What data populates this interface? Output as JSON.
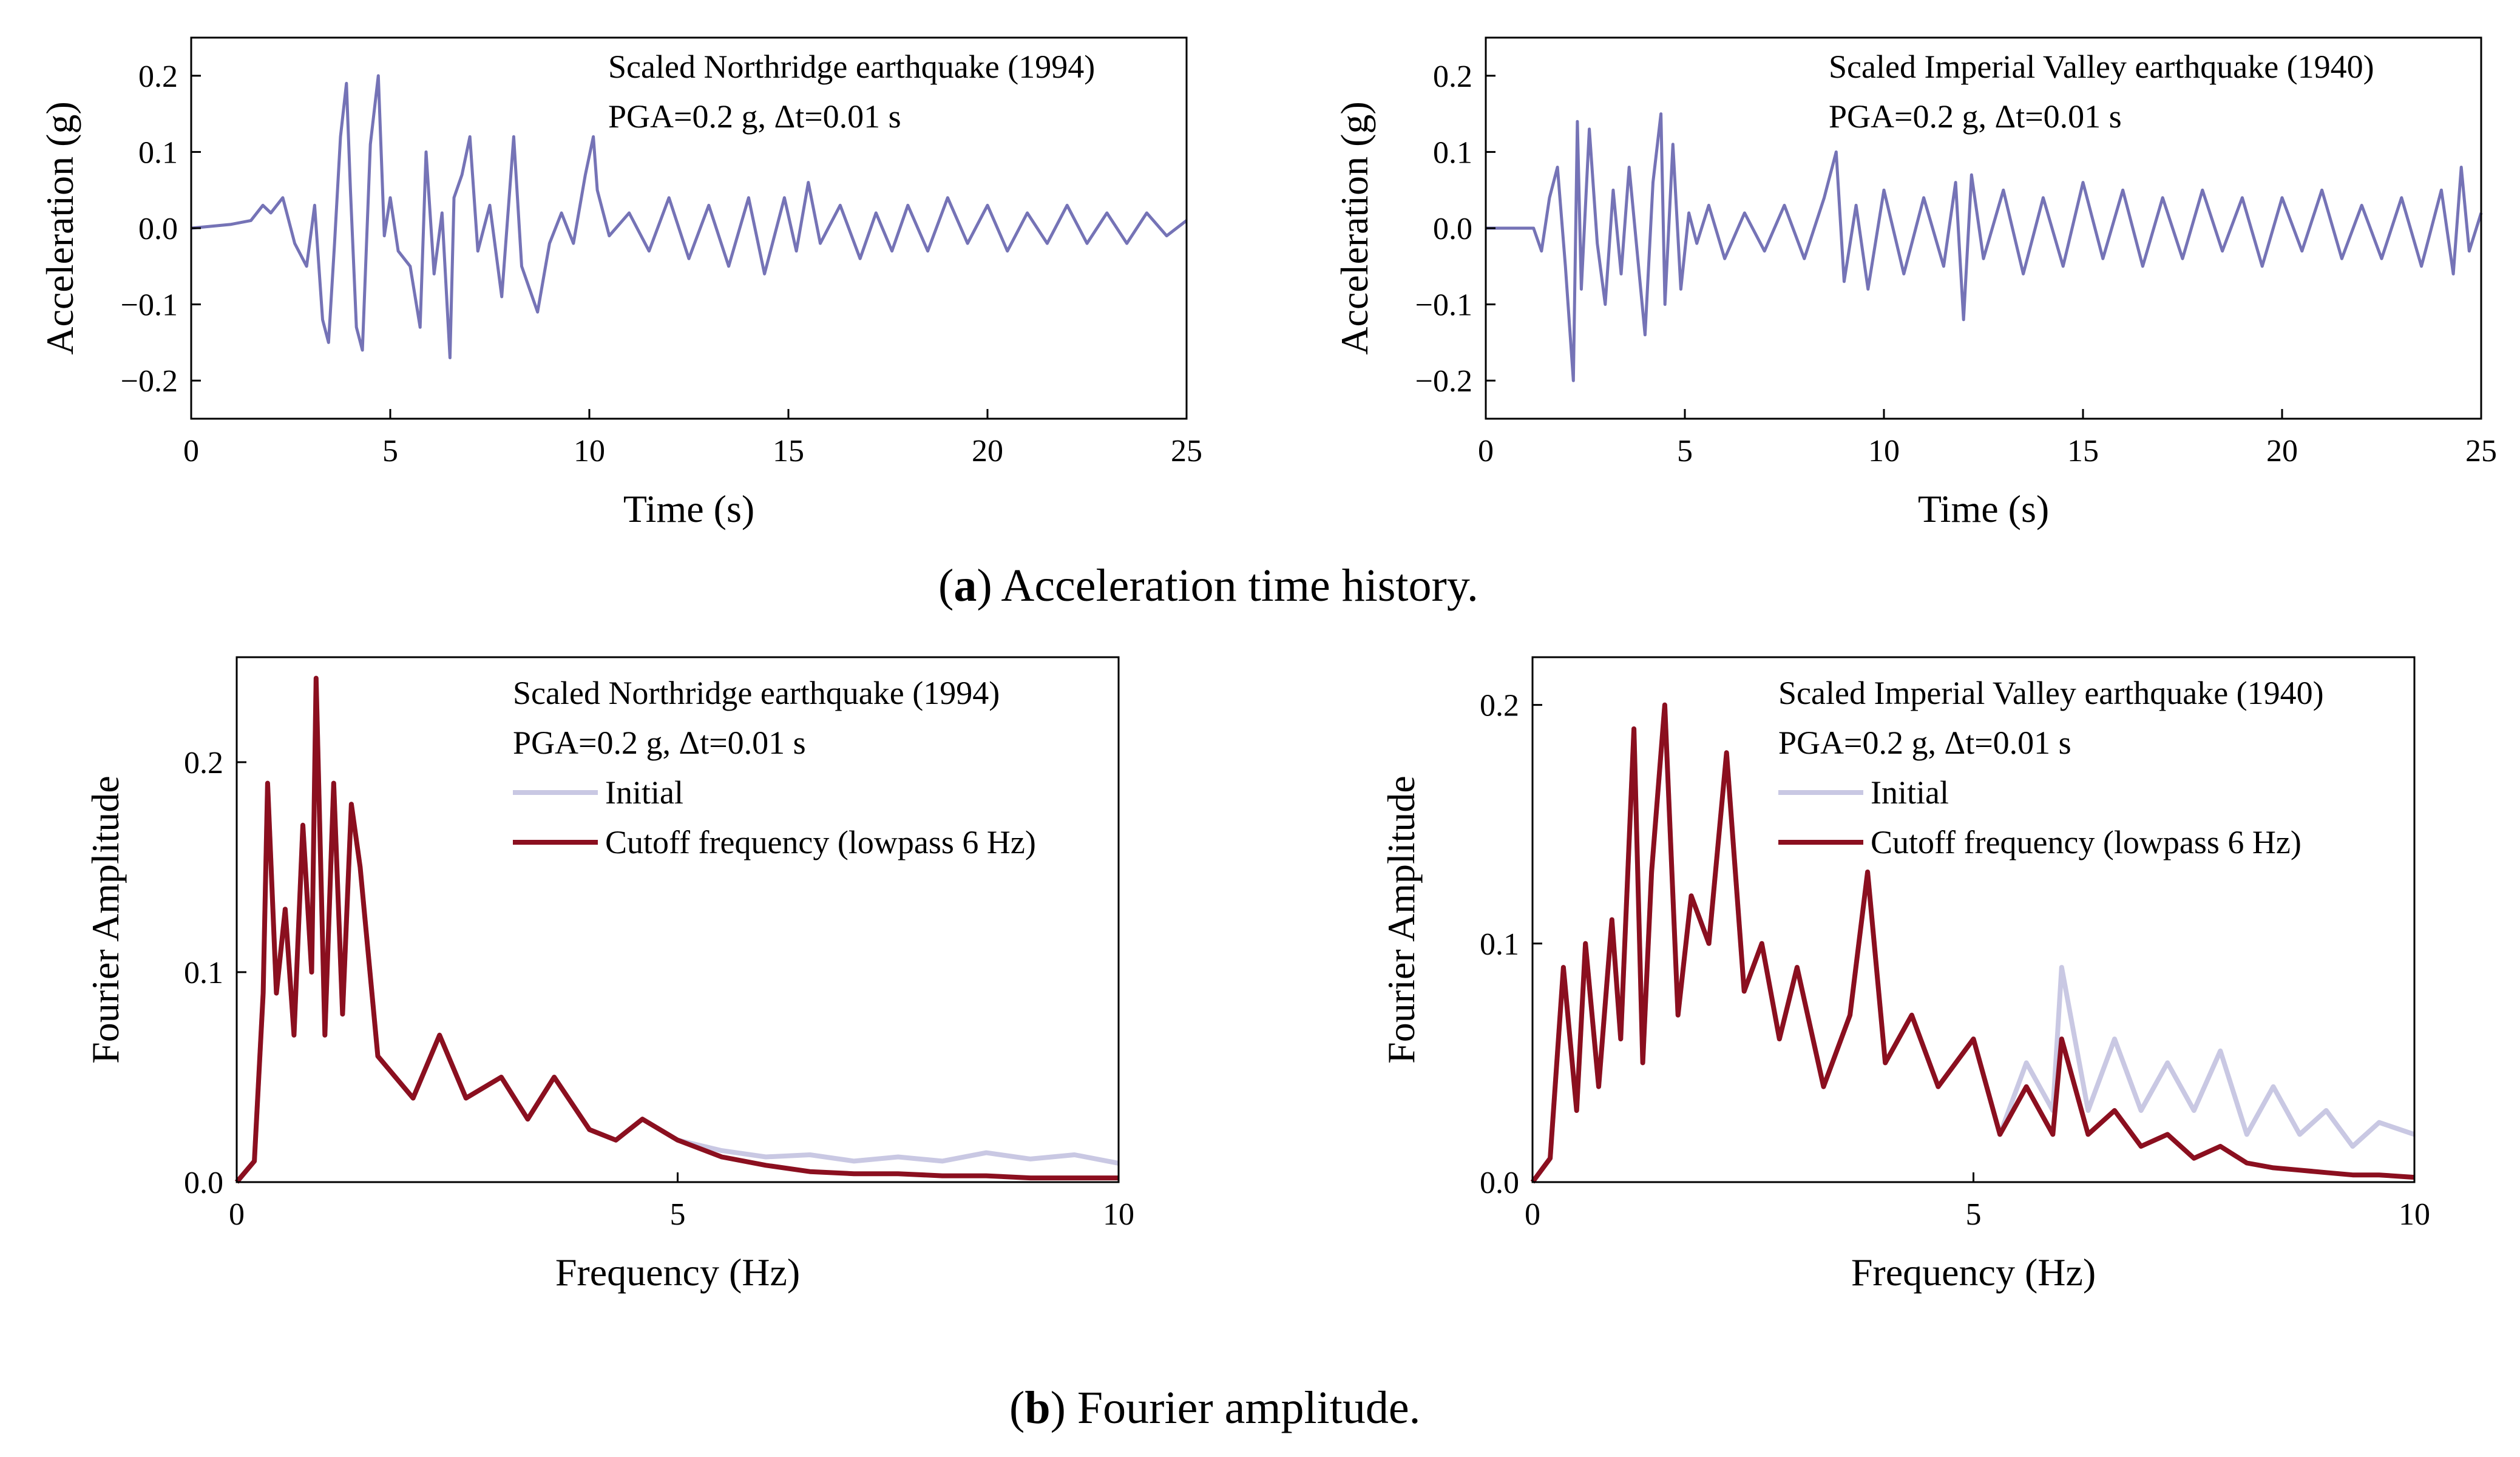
{
  "captions": {
    "a_letter": "a",
    "a_text": ") Acceleration time history.",
    "b_letter": "b",
    "b_text": ") Fourier amplitude."
  },
  "colors": {
    "acc": "#7573b6",
    "initial": "#c9c8e3",
    "cutoff": "#8b0f1f"
  },
  "chart_data": [
    {
      "type": "line",
      "panel": "a-left",
      "annotation": [
        "Scaled Northridge earthquake (1994)",
        "PGA=0.2 g, Δt=0.01 s"
      ],
      "xlabel": "Time (s)",
      "ylabel": "Acceleration (g)",
      "xlim": [
        0,
        25
      ],
      "ylim": [
        -0.25,
        0.25
      ],
      "xticks": [
        "0",
        "5",
        "10",
        "15",
        "20",
        "25"
      ],
      "yticks": [
        "−0.2",
        "−0.1",
        "0.0",
        "0.1",
        "0.2"
      ],
      "series": [
        {
          "color_key": "acc",
          "x": [
            0,
            1.0,
            1.5,
            1.8,
            2.0,
            2.3,
            2.6,
            2.9,
            3.1,
            3.3,
            3.45,
            3.6,
            3.75,
            3.9,
            4.0,
            4.15,
            4.3,
            4.5,
            4.7,
            4.85,
            5.0,
            5.2,
            5.5,
            5.75,
            5.9,
            6.1,
            6.3,
            6.5,
            6.6,
            6.8,
            7.0,
            7.2,
            7.5,
            7.8,
            8.1,
            8.3,
            8.5,
            8.7,
            9.0,
            9.3,
            9.6,
            9.9,
            10.1,
            10.2,
            10.5,
            11.0,
            11.5,
            12.0,
            12.5,
            13.0,
            13.5,
            14.0,
            14.4,
            14.9,
            15.2,
            15.5,
            15.8,
            16.3,
            16.8,
            17.2,
            17.6,
            18.0,
            18.5,
            19.0,
            19.5,
            20.0,
            20.5,
            21.0,
            21.5,
            22.0,
            22.5,
            23.0,
            23.5,
            24.0,
            24.5,
            25.0
          ],
          "y": [
            0,
            0.005,
            0.01,
            0.03,
            0.02,
            0.04,
            -0.02,
            -0.05,
            0.03,
            -0.12,
            -0.15,
            -0.02,
            0.12,
            0.19,
            0.05,
            -0.13,
            -0.16,
            0.11,
            0.2,
            -0.01,
            0.04,
            -0.03,
            -0.05,
            -0.13,
            0.1,
            -0.06,
            0.02,
            -0.17,
            0.04,
            0.07,
            0.12,
            -0.03,
            0.03,
            -0.09,
            0.12,
            -0.05,
            -0.08,
            -0.11,
            -0.02,
            0.02,
            -0.02,
            0.07,
            0.12,
            0.05,
            -0.01,
            0.02,
            -0.03,
            0.04,
            -0.04,
            0.03,
            -0.05,
            0.04,
            -0.06,
            0.04,
            -0.03,
            0.06,
            -0.02,
            0.03,
            -0.04,
            0.02,
            -0.03,
            0.03,
            -0.03,
            0.04,
            -0.02,
            0.03,
            -0.03,
            0.02,
            -0.02,
            0.03,
            -0.02,
            0.02,
            -0.02,
            0.02,
            -0.01,
            0.01
          ]
        }
      ]
    },
    {
      "type": "line",
      "panel": "a-right",
      "annotation": [
        "Scaled Imperial Valley earthquake (1940)",
        "PGA=0.2 g, Δt=0.01 s"
      ],
      "xlabel": "Time (s)",
      "ylabel": "Acceleration (g)",
      "xlim": [
        0,
        25
      ],
      "ylim": [
        -0.25,
        0.25
      ],
      "xticks": [
        "0",
        "5",
        "10",
        "15",
        "20",
        "25"
      ],
      "yticks": [
        "−0.2",
        "−0.1",
        "0.0",
        "0.1",
        "0.2"
      ],
      "series": [
        {
          "color_key": "acc",
          "x": [
            0,
            1.2,
            1.4,
            1.6,
            1.8,
            2.0,
            2.2,
            2.3,
            2.4,
            2.6,
            2.8,
            3.0,
            3.2,
            3.4,
            3.6,
            3.8,
            4.0,
            4.2,
            4.4,
            4.5,
            4.7,
            4.9,
            5.1,
            5.3,
            5.6,
            6.0,
            6.5,
            7.0,
            7.5,
            8.0,
            8.5,
            8.8,
            9.0,
            9.3,
            9.6,
            10.0,
            10.5,
            11.0,
            11.5,
            11.8,
            12.0,
            12.2,
            12.5,
            13.0,
            13.5,
            14.0,
            14.5,
            15.0,
            15.5,
            16.0,
            16.5,
            17.0,
            17.5,
            18.0,
            18.5,
            19.0,
            19.5,
            20.0,
            20.5,
            21.0,
            21.5,
            22.0,
            22.5,
            23.0,
            23.5,
            24.0,
            24.3,
            24.5,
            24.7,
            25.0
          ],
          "y": [
            0,
            0.0,
            -0.03,
            0.04,
            0.08,
            -0.05,
            -0.2,
            0.14,
            -0.08,
            0.13,
            -0.02,
            -0.1,
            0.05,
            -0.06,
            0.08,
            -0.03,
            -0.14,
            0.06,
            0.15,
            -0.1,
            0.11,
            -0.08,
            0.02,
            -0.02,
            0.03,
            -0.04,
            0.02,
            -0.03,
            0.03,
            -0.04,
            0.04,
            0.1,
            -0.07,
            0.03,
            -0.08,
            0.05,
            -0.06,
            0.04,
            -0.05,
            0.06,
            -0.12,
            0.07,
            -0.04,
            0.05,
            -0.06,
            0.04,
            -0.05,
            0.06,
            -0.04,
            0.05,
            -0.05,
            0.04,
            -0.04,
            0.05,
            -0.03,
            0.04,
            -0.05,
            0.04,
            -0.03,
            0.05,
            -0.04,
            0.03,
            -0.04,
            0.04,
            -0.05,
            0.05,
            -0.06,
            0.08,
            -0.03,
            0.02
          ]
        }
      ]
    },
    {
      "type": "line",
      "panel": "b-left",
      "annotation": [
        "Scaled Northridge earthquake (1994)",
        "PGA=0.2 g, Δt=0.01 s"
      ],
      "xlabel": "Frequency (Hz)",
      "ylabel": "Fourier Amplitude",
      "xlim": [
        0,
        10
      ],
      "ylim": [
        0,
        0.25
      ],
      "xticks": [
        "0",
        "5",
        "10"
      ],
      "yticks": [
        "0.0",
        "0.1",
        "0.2"
      ],
      "series": [
        {
          "name": "Initial",
          "color_key": "initial",
          "x": [
            0,
            0.2,
            0.3,
            0.35,
            0.45,
            0.55,
            0.65,
            0.75,
            0.85,
            0.9,
            1.0,
            1.1,
            1.2,
            1.3,
            1.4,
            1.6,
            1.8,
            2.0,
            2.3,
            2.6,
            3.0,
            3.3,
            3.6,
            4.0,
            4.3,
            4.6,
            5.0,
            5.5,
            6.0,
            6.5,
            7.0,
            7.5,
            8.0,
            8.5,
            9.0,
            9.5,
            10.0
          ],
          "y": [
            0,
            0.01,
            0.09,
            0.19,
            0.09,
            0.13,
            0.07,
            0.17,
            0.1,
            0.24,
            0.07,
            0.19,
            0.08,
            0.18,
            0.15,
            0.06,
            0.05,
            0.04,
            0.07,
            0.04,
            0.05,
            0.03,
            0.05,
            0.025,
            0.02,
            0.03,
            0.02,
            0.015,
            0.012,
            0.013,
            0.01,
            0.012,
            0.01,
            0.014,
            0.011,
            0.013,
            0.009
          ]
        },
        {
          "name": "Cutoff frequency (lowpass 6 Hz)",
          "color_key": "cutoff",
          "x": [
            0,
            0.2,
            0.3,
            0.35,
            0.45,
            0.55,
            0.65,
            0.75,
            0.85,
            0.9,
            1.0,
            1.1,
            1.2,
            1.3,
            1.4,
            1.6,
            1.8,
            2.0,
            2.3,
            2.6,
            3.0,
            3.3,
            3.6,
            4.0,
            4.3,
            4.6,
            5.0,
            5.5,
            6.0,
            6.5,
            7.0,
            7.5,
            8.0,
            8.5,
            9.0,
            9.5,
            10.0
          ],
          "y": [
            0,
            0.01,
            0.09,
            0.19,
            0.09,
            0.13,
            0.07,
            0.17,
            0.1,
            0.24,
            0.07,
            0.19,
            0.08,
            0.18,
            0.15,
            0.06,
            0.05,
            0.04,
            0.07,
            0.04,
            0.05,
            0.03,
            0.05,
            0.025,
            0.02,
            0.03,
            0.02,
            0.012,
            0.008,
            0.005,
            0.004,
            0.004,
            0.003,
            0.003,
            0.002,
            0.002,
            0.002
          ]
        }
      ]
    },
    {
      "type": "line",
      "panel": "b-right",
      "annotation": [
        "Scaled Imperial Valley earthquake (1940)",
        "PGA=0.2 g, Δt=0.01 s"
      ],
      "xlabel": "Frequency (Hz)",
      "ylabel": "Fourier Amplitude",
      "xlim": [
        0,
        10
      ],
      "ylim": [
        0,
        0.22
      ],
      "xticks": [
        "0",
        "5",
        "10"
      ],
      "yticks": [
        "0.0",
        "0.1",
        "0.2"
      ],
      "series": [
        {
          "name": "Initial",
          "color_key": "initial",
          "x": [
            0,
            0.2,
            0.35,
            0.5,
            0.6,
            0.75,
            0.9,
            1.0,
            1.15,
            1.25,
            1.35,
            1.5,
            1.65,
            1.8,
            2.0,
            2.2,
            2.4,
            2.6,
            2.8,
            3.0,
            3.3,
            3.6,
            3.8,
            4.0,
            4.3,
            4.6,
            5.0,
            5.3,
            5.6,
            5.9,
            6.0,
            6.3,
            6.6,
            6.9,
            7.2,
            7.5,
            7.8,
            8.1,
            8.4,
            8.7,
            9.0,
            9.3,
            9.6,
            10.0
          ],
          "y": [
            0,
            0.01,
            0.09,
            0.03,
            0.1,
            0.04,
            0.11,
            0.06,
            0.19,
            0.05,
            0.13,
            0.2,
            0.07,
            0.12,
            0.1,
            0.18,
            0.08,
            0.1,
            0.06,
            0.09,
            0.04,
            0.07,
            0.13,
            0.05,
            0.07,
            0.04,
            0.06,
            0.02,
            0.05,
            0.03,
            0.09,
            0.03,
            0.06,
            0.03,
            0.05,
            0.03,
            0.055,
            0.02,
            0.04,
            0.02,
            0.03,
            0.015,
            0.025,
            0.02
          ]
        },
        {
          "name": "Cutoff frequency (lowpass 6 Hz)",
          "color_key": "cutoff",
          "x": [
            0,
            0.2,
            0.35,
            0.5,
            0.6,
            0.75,
            0.9,
            1.0,
            1.15,
            1.25,
            1.35,
            1.5,
            1.65,
            1.8,
            2.0,
            2.2,
            2.4,
            2.6,
            2.8,
            3.0,
            3.3,
            3.6,
            3.8,
            4.0,
            4.3,
            4.6,
            5.0,
            5.3,
            5.6,
            5.9,
            6.0,
            6.3,
            6.6,
            6.9,
            7.2,
            7.5,
            7.8,
            8.1,
            8.4,
            8.7,
            9.0,
            9.3,
            9.6,
            10.0
          ],
          "y": [
            0,
            0.01,
            0.09,
            0.03,
            0.1,
            0.04,
            0.11,
            0.06,
            0.19,
            0.05,
            0.13,
            0.2,
            0.07,
            0.12,
            0.1,
            0.18,
            0.08,
            0.1,
            0.06,
            0.09,
            0.04,
            0.07,
            0.13,
            0.05,
            0.07,
            0.04,
            0.06,
            0.02,
            0.04,
            0.02,
            0.06,
            0.02,
            0.03,
            0.015,
            0.02,
            0.01,
            0.015,
            0.008,
            0.006,
            0.005,
            0.004,
            0.003,
            0.003,
            0.002
          ]
        }
      ]
    }
  ]
}
